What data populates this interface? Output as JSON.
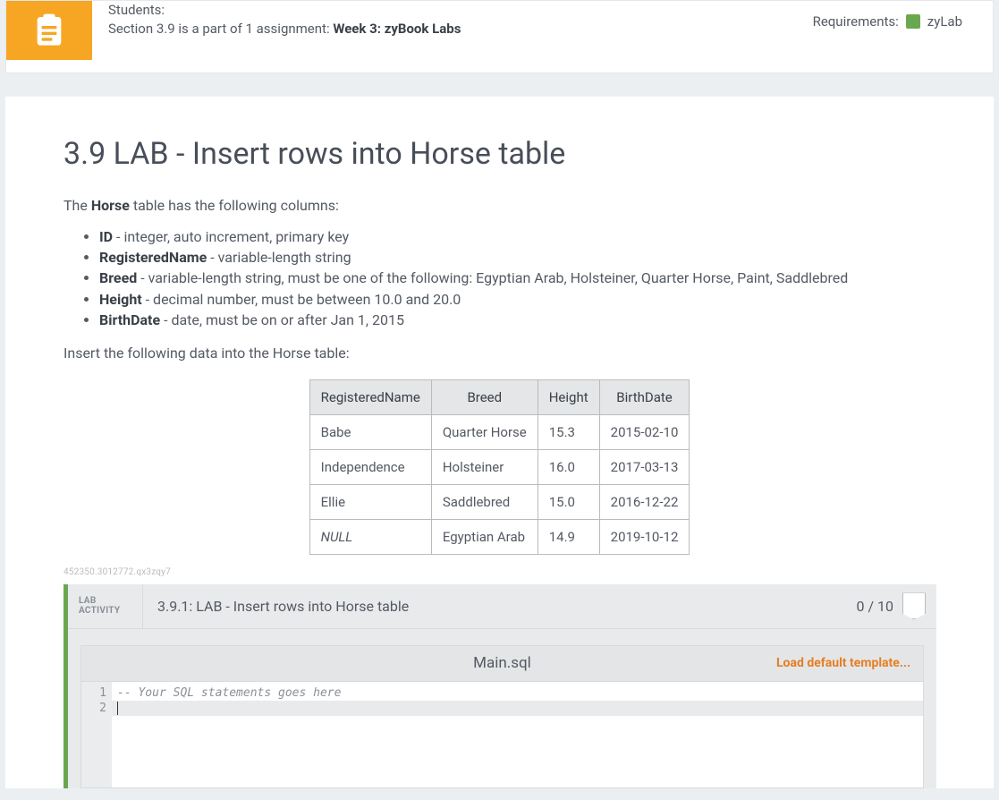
{
  "banner": {
    "line1": "Students:",
    "line2_prefix": "Section 3.9 is a part of 1 assignment: ",
    "line2_bold": "Week 3: zyBook Labs",
    "requirements_label": "Requirements:",
    "requirements_value": "zyLab",
    "requirements_color": "#6aa84f",
    "icon_color": "#f6a623"
  },
  "page": {
    "title": "3.9 LAB - Insert rows into Horse table",
    "intro_prefix": "The ",
    "intro_bold": "Horse",
    "intro_suffix": " table has the following columns:",
    "columns_list": [
      {
        "name": "ID",
        "desc": " - integer, auto increment, primary key"
      },
      {
        "name": "RegisteredName",
        "desc": " - variable-length string"
      },
      {
        "name": "Breed",
        "desc": " - variable-length string, must be one of the following: Egyptian Arab, Holsteiner, Quarter Horse, Paint, Saddlebred"
      },
      {
        "name": "Height",
        "desc": " - decimal number, must be between 10.0 and 20.0"
      },
      {
        "name": "BirthDate",
        "desc": " - date, must be on or after Jan 1, 2015"
      }
    ],
    "insert_note": "Insert the following data into the Horse table:",
    "tiny_id": "452350.3012772.qx3zqy7"
  },
  "data_table": {
    "headers": [
      "RegisteredName",
      "Breed",
      "Height",
      "BirthDate"
    ],
    "rows": [
      {
        "cells": [
          "Babe",
          "Quarter Horse",
          "15.3",
          "2015-02-10"
        ],
        "italic0": false
      },
      {
        "cells": [
          "Independence",
          "Holsteiner",
          "16.0",
          "2017-03-13"
        ],
        "italic0": false
      },
      {
        "cells": [
          "Ellie",
          "Saddlebred",
          "15.0",
          "2016-12-22"
        ],
        "italic0": false
      },
      {
        "cells": [
          "NULL",
          "Egyptian Arab",
          "14.9",
          "2019-10-12"
        ],
        "italic0": true
      }
    ]
  },
  "lab": {
    "activity_label_l1": "LAB",
    "activity_label_l2": "ACTIVITY",
    "title": "3.9.1: LAB - Insert rows into Horse table",
    "score": "0 / 10",
    "accent_color": "#6aa84f"
  },
  "editor": {
    "filename": "Main.sql",
    "load_template_label": "Load default template...",
    "load_template_color": "#e67e22",
    "gutter_bg": "#ebecee",
    "highlight_bg": "#e9eaec",
    "lines": [
      {
        "n": "1",
        "text": "-- Your SQL statements goes here",
        "comment": true,
        "highlight": false
      },
      {
        "n": "2",
        "text": "",
        "comment": false,
        "highlight": true
      }
    ]
  }
}
